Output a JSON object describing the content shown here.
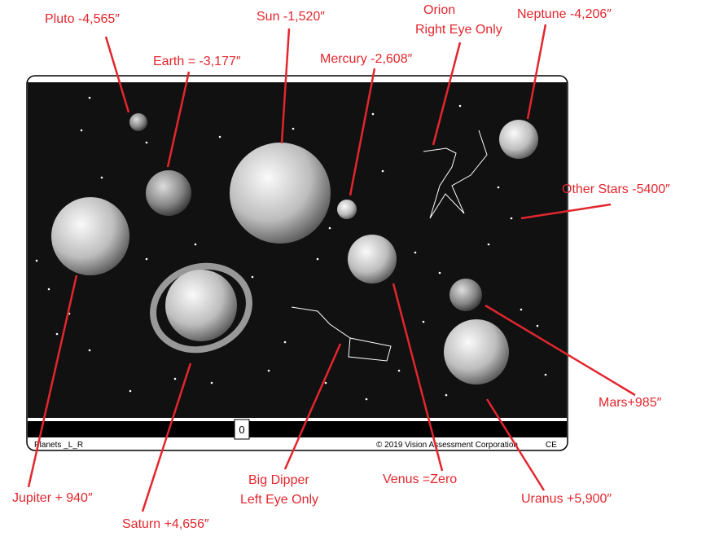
{
  "labels": [
    {
      "text": "Pluto -4,565″"
    },
    {
      "text": "Earth = -3,177″"
    },
    {
      "text": "Sun -1,520″"
    },
    {
      "text": "Mercury -2,608″"
    },
    {
      "lines": [
        "Orion",
        "Right Eye Only"
      ]
    },
    {
      "text": "Neptune -4,206″"
    },
    {
      "text": "Other Stars -5400″"
    },
    {
      "text": "Mars+985″"
    },
    {
      "text": "Uranus +5,900″"
    },
    {
      "text": "Venus =Zero"
    },
    {
      "lines": [
        "Big Dipper",
        "Left Eye Only"
      ]
    },
    {
      "text": "Saturn +4,656″"
    },
    {
      "text": "Jupiter + 940″"
    }
  ],
  "card": {
    "name": "Planets _L_R",
    "counter": "0",
    "copyright": "© 2019 Vision Assessment Corporation",
    "mark": "CE"
  }
}
